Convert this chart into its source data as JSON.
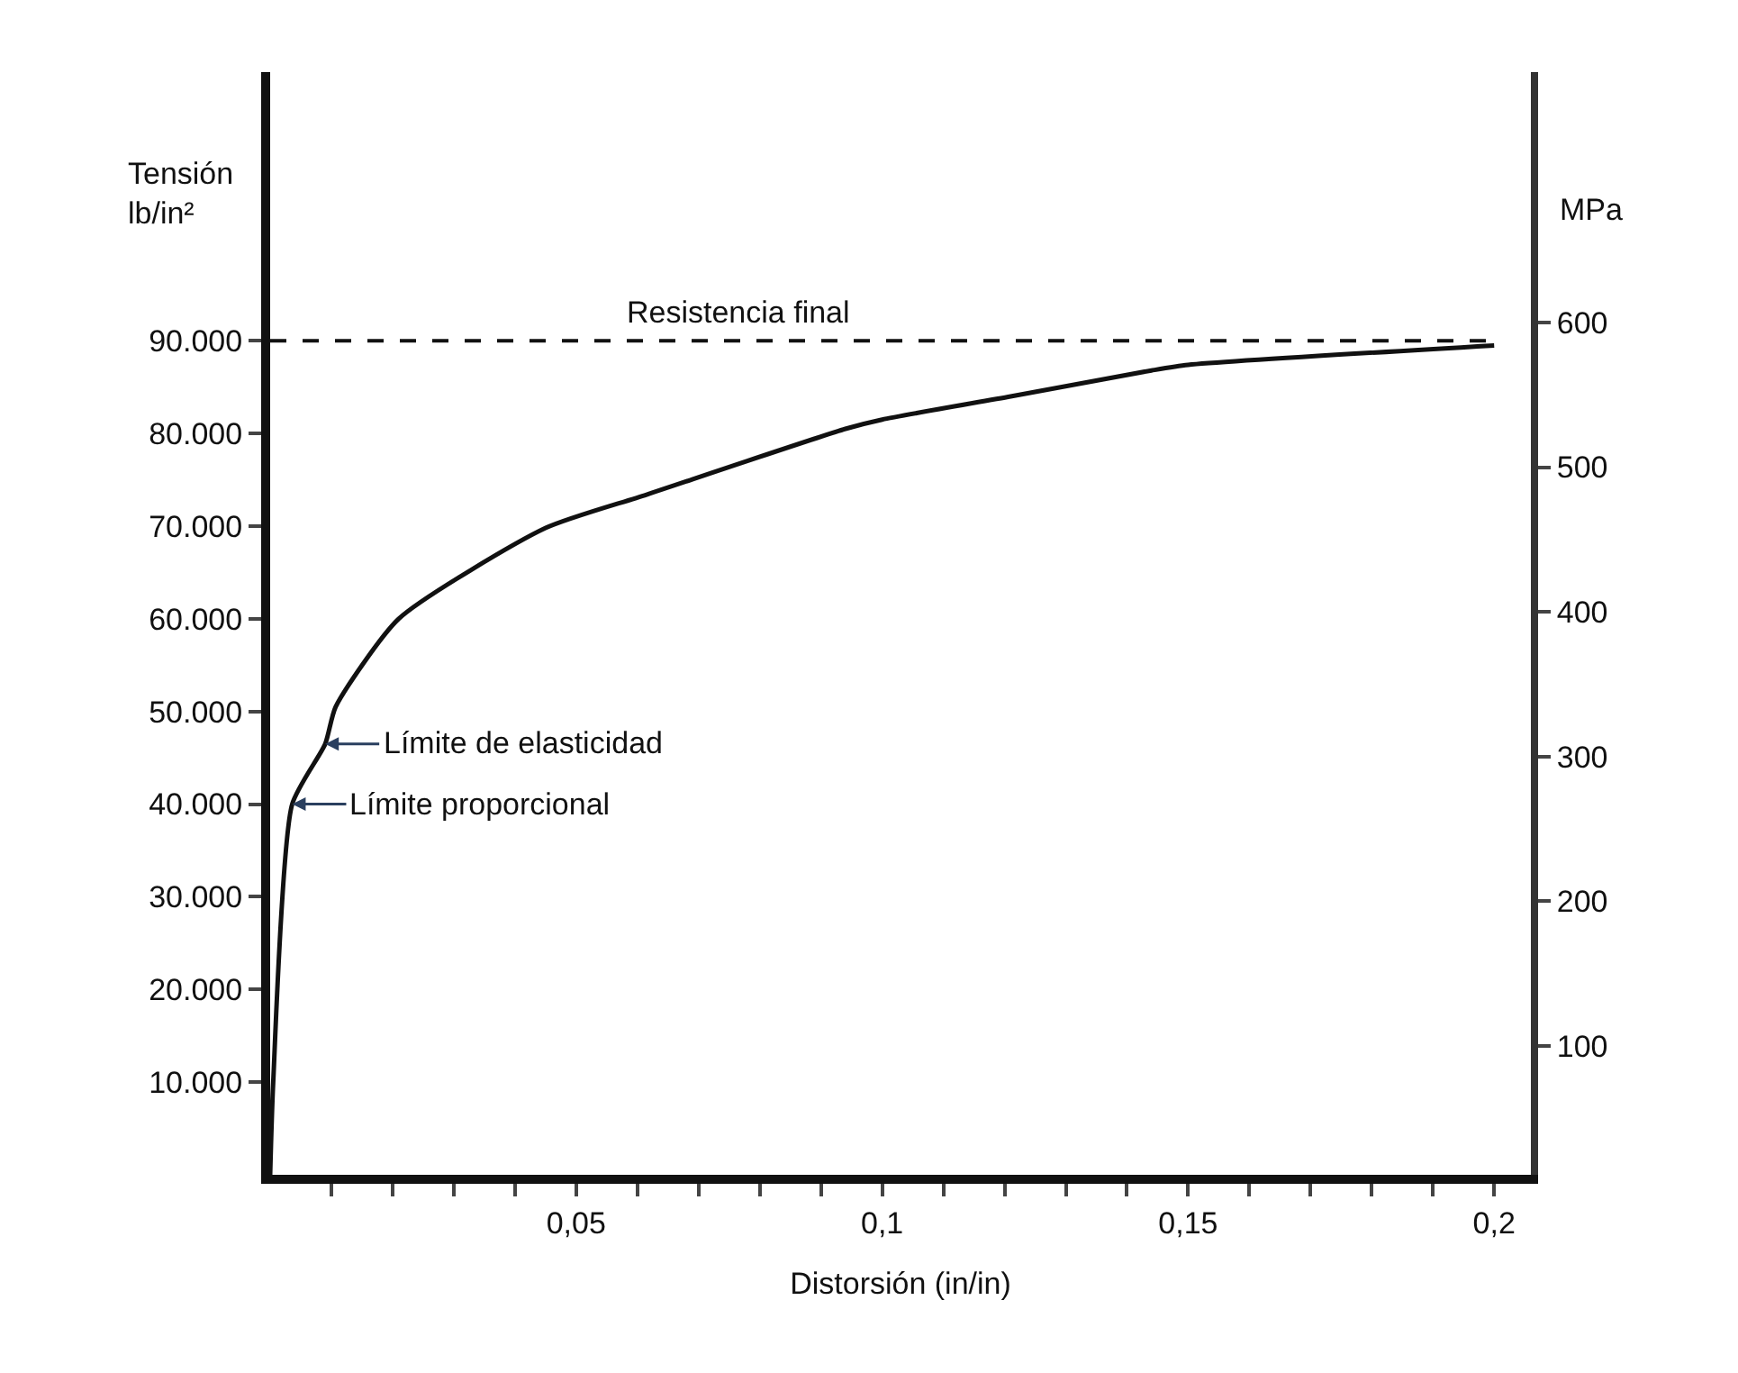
{
  "chart_data": {
    "type": "line",
    "xlabel": "Distorsión (in/in)",
    "ylabel": "Tensión\nlb/in²",
    "y2label": "MPa",
    "series": [
      {
        "color": "#111111",
        "x": [
          0,
          0.0005,
          0.0036,
          0.009,
          0.0107,
          0.021,
          0.045,
          0.0615,
          0.094,
          0.1,
          0.121,
          0.144,
          0.15,
          0.2
        ],
        "values": [
          0,
          10000,
          40000,
          46500,
          50500,
          60000,
          69800,
          73400,
          80500,
          81500,
          84000,
          86800,
          87400,
          89500
        ]
      }
    ],
    "xlim": [
      0,
      0.206
    ],
    "xticks": [
      {
        "value": 0.01,
        "label": null
      },
      {
        "value": 0.02,
        "label": null
      },
      {
        "value": 0.03,
        "label": null
      },
      {
        "value": 0.04,
        "label": null
      },
      {
        "value": 0.05,
        "label": "0,05"
      },
      {
        "value": 0.06,
        "label": null
      },
      {
        "value": 0.07,
        "label": null
      },
      {
        "value": 0.08,
        "label": null
      },
      {
        "value": 0.09,
        "label": null
      },
      {
        "value": 0.1,
        "label": "0,1"
      },
      {
        "value": 0.11,
        "label": null
      },
      {
        "value": 0.12,
        "label": null
      },
      {
        "value": 0.13,
        "label": null
      },
      {
        "value": 0.14,
        "label": null
      },
      {
        "value": 0.15,
        "label": "0,15"
      },
      {
        "value": 0.16,
        "label": null
      },
      {
        "value": 0.17,
        "label": null
      },
      {
        "value": 0.18,
        "label": null
      },
      {
        "value": 0.19,
        "label": null
      },
      {
        "value": 0.2,
        "label": "0,2"
      }
    ],
    "ylim": [
      0,
      119000
    ],
    "yticks": [
      {
        "value": 10000,
        "label": "10.000"
      },
      {
        "value": 20000,
        "label": "20.000"
      },
      {
        "value": 30000,
        "label": "30.000"
      },
      {
        "value": 40000,
        "label": "40.000"
      },
      {
        "value": 50000,
        "label": "50.000"
      },
      {
        "value": 60000,
        "label": "60.000"
      },
      {
        "value": 70000,
        "label": "70.000"
      },
      {
        "value": 80000,
        "label": "80.000"
      },
      {
        "value": 90000,
        "label": "90.000"
      }
    ],
    "y2lim": [
      11,
      773
    ],
    "y2ticks": [
      100,
      200,
      300,
      400,
      500,
      600
    ],
    "ref_lines": [
      {
        "axis": "y",
        "value": 90000,
        "label": "Resistencia final",
        "line_style": "dashed",
        "color": "#111111"
      }
    ],
    "annotations": [
      {
        "text": "Límite de elasticidad",
        "x": 0.009,
        "y": 46500
      },
      {
        "text": "Límite proporcional",
        "x": 0.0036,
        "y": 40000
      }
    ],
    "legend": false,
    "marker": "none",
    "line_style": "solid"
  }
}
